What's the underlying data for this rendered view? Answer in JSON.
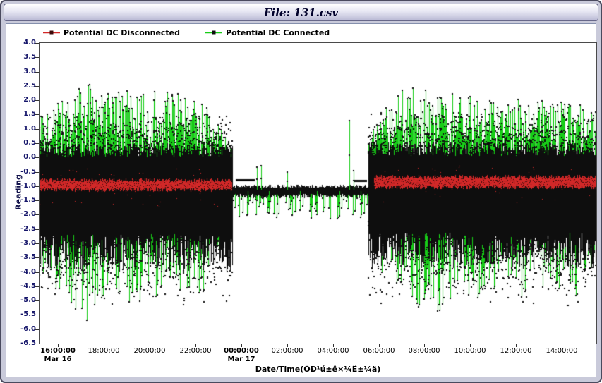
{
  "window": {
    "title": "File: 131.csv"
  },
  "chart_data": {
    "type": "line",
    "title": "File: 131.csv",
    "xlabel": "Date/Time(ÖÐ¹ú±ê×¼Ê±¼ä)",
    "ylabel": "Reading",
    "ylim": [
      -6.5,
      4.0
    ],
    "ytick_step": 0.5,
    "grid": false,
    "legend_position": "top-left",
    "x_hours_range": [
      15.2,
      39.5
    ],
    "yticks": [
      "4.0",
      "3.5",
      "3.0",
      "2.5",
      "2.0",
      "1.5",
      "1.0",
      "0.5",
      "0.0",
      "-0.5",
      "-1.0",
      "-1.5",
      "-2.0",
      "-2.5",
      "-3.0",
      "-3.5",
      "-4.0",
      "-4.5",
      "-5.0",
      "-5.5",
      "-6.0",
      "-6.5"
    ],
    "xticks": [
      {
        "hours": 16,
        "label": "16:00:00",
        "bold": true,
        "date": "Mar 16"
      },
      {
        "hours": 18,
        "label": "18:00:00",
        "bold": false
      },
      {
        "hours": 20,
        "label": "20:00:00",
        "bold": false
      },
      {
        "hours": 22,
        "label": "22:00:00",
        "bold": false
      },
      {
        "hours": 24,
        "label": "00:00:00",
        "bold": true,
        "date": "Mar 17"
      },
      {
        "hours": 26,
        "label": "02:00:00",
        "bold": false
      },
      {
        "hours": 28,
        "label": "04:00:00",
        "bold": false
      },
      {
        "hours": 30,
        "label": "06:00:00",
        "bold": false
      },
      {
        "hours": 32,
        "label": "08:00:00",
        "bold": false
      },
      {
        "hours": 34,
        "label": "10:00:00",
        "bold": false
      },
      {
        "hours": 36,
        "label": "12:00:00",
        "bold": false
      },
      {
        "hours": 38,
        "label": "14:00:00",
        "bold": false
      }
    ],
    "series": [
      {
        "name": "Potential DC Disconnected",
        "line_color": "#d22828",
        "marker_color": "#3c0a0a",
        "band_segments": [
          {
            "from": 15.2,
            "to": 23.6,
            "center": -0.95,
            "half_width": 0.22
          },
          {
            "from": 29.8,
            "to": 39.5,
            "center": -0.85,
            "half_width": 0.24
          }
        ]
      },
      {
        "name": "Potential DC Connected",
        "line_color": "#17cd17",
        "marker_color": "#0e0e0e",
        "active_segments": [
          {
            "from": 15.2,
            "to": 23.65,
            "cloud_center": -1.3,
            "envelope": [
              [
                15.2,
                1.6,
                -4.2
              ],
              [
                16.5,
                2.2,
                -5.2
              ],
              [
                17.3,
                2.6,
                -5.8
              ],
              [
                18.5,
                2.5,
                -5.0
              ],
              [
                19.5,
                2.3,
                -5.3
              ],
              [
                20.5,
                2.4,
                -4.8
              ],
              [
                21.5,
                2.2,
                -5.1
              ],
              [
                22.5,
                1.8,
                -4.6
              ],
              [
                23.2,
                1.1,
                -3.4
              ],
              [
                23.65,
                0.3,
                -1.9
              ]
            ]
          },
          {
            "from": 29.55,
            "to": 39.5,
            "cloud_center": -1.25,
            "envelope": [
              [
                29.55,
                0.6,
                -2.4
              ],
              [
                30.1,
                1.6,
                -4.0
              ],
              [
                30.8,
                2.3,
                -4.7
              ],
              [
                31.6,
                2.6,
                -5.2
              ],
              [
                32.5,
                2.2,
                -5.5
              ],
              [
                33.5,
                2.3,
                -4.8
              ],
              [
                34.5,
                2.0,
                -5.1
              ],
              [
                35.5,
                2.2,
                -4.6
              ],
              [
                36.5,
                1.9,
                -5.0
              ],
              [
                37.5,
                2.1,
                -4.4
              ],
              [
                38.6,
                1.9,
                -4.9
              ],
              [
                39.5,
                1.6,
                -4.3
              ]
            ]
          }
        ],
        "quiet_segment": {
          "from": 23.65,
          "to": 29.55,
          "center": -1.15,
          "half_width": 0.14,
          "tail_prob": 0.3,
          "tail_depth": 0.75,
          "flats": [
            {
              "from": 23.75,
              "to": 24.6,
              "level": -0.78
            },
            {
              "from": 28.95,
              "to": 29.5,
              "level": -0.8
            }
          ],
          "spikes": [
            {
              "t": 24.3,
              "v": -2.0
            },
            {
              "t": 24.7,
              "v": -0.35
            },
            {
              "t": 24.88,
              "v": -0.3
            },
            {
              "t": 25.2,
              "v": -1.95
            },
            {
              "t": 26.0,
              "v": -0.5
            },
            {
              "t": 26.55,
              "v": -1.85
            },
            {
              "t": 27.3,
              "v": -2.0
            },
            {
              "t": 28.3,
              "v": -2.05
            },
            {
              "t": 28.72,
              "v": 1.3
            },
            {
              "t": 28.9,
              "v": -0.45
            },
            {
              "t": 29.2,
              "v": -2.1
            }
          ]
        }
      }
    ]
  }
}
